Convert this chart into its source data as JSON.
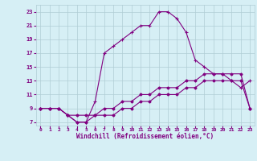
{
  "xlabel": "Windchill (Refroidissement éolien,°C)",
  "background_color": "#d6eff5",
  "grid_color": "#b0cdd5",
  "line_color": "#800080",
  "xlim": [
    -0.5,
    23.5
  ],
  "ylim": [
    6.5,
    24
  ],
  "xticks": [
    0,
    1,
    2,
    3,
    4,
    5,
    6,
    7,
    8,
    9,
    10,
    11,
    12,
    13,
    14,
    15,
    16,
    17,
    18,
    19,
    20,
    21,
    22,
    23
  ],
  "yticks": [
    7,
    9,
    11,
    13,
    15,
    17,
    19,
    21,
    23
  ],
  "series1_x": [
    0,
    1,
    2,
    3,
    4,
    5,
    6,
    7,
    8,
    9,
    10,
    11,
    12,
    13,
    14,
    15,
    16,
    17,
    18,
    19,
    20,
    21,
    22,
    23
  ],
  "series1_y": [
    9,
    9,
    9,
    8,
    7,
    7,
    10,
    17,
    18,
    19,
    20,
    21,
    21,
    23,
    23,
    22,
    20,
    16,
    15,
    14,
    14,
    13,
    12,
    13
  ],
  "series2_x": [
    0,
    1,
    2,
    3,
    4,
    5,
    6,
    7,
    8,
    9,
    10,
    11,
    12,
    13,
    14,
    15,
    16,
    17,
    18,
    19,
    20,
    21,
    22,
    23
  ],
  "series2_y": [
    9,
    9,
    9,
    8,
    8,
    8,
    8,
    9,
    9,
    10,
    10,
    11,
    11,
    12,
    12,
    12,
    13,
    13,
    14,
    14,
    14,
    14,
    14,
    9
  ],
  "series3_x": [
    0,
    1,
    2,
    3,
    4,
    5,
    6,
    7,
    8,
    9,
    10,
    11,
    12,
    13,
    14,
    15,
    16,
    17,
    18,
    19,
    20,
    21,
    22,
    23
  ],
  "series3_y": [
    9,
    9,
    9,
    8,
    7,
    7,
    8,
    8,
    8,
    9,
    9,
    10,
    10,
    11,
    11,
    11,
    12,
    12,
    13,
    13,
    13,
    13,
    13,
    9
  ]
}
